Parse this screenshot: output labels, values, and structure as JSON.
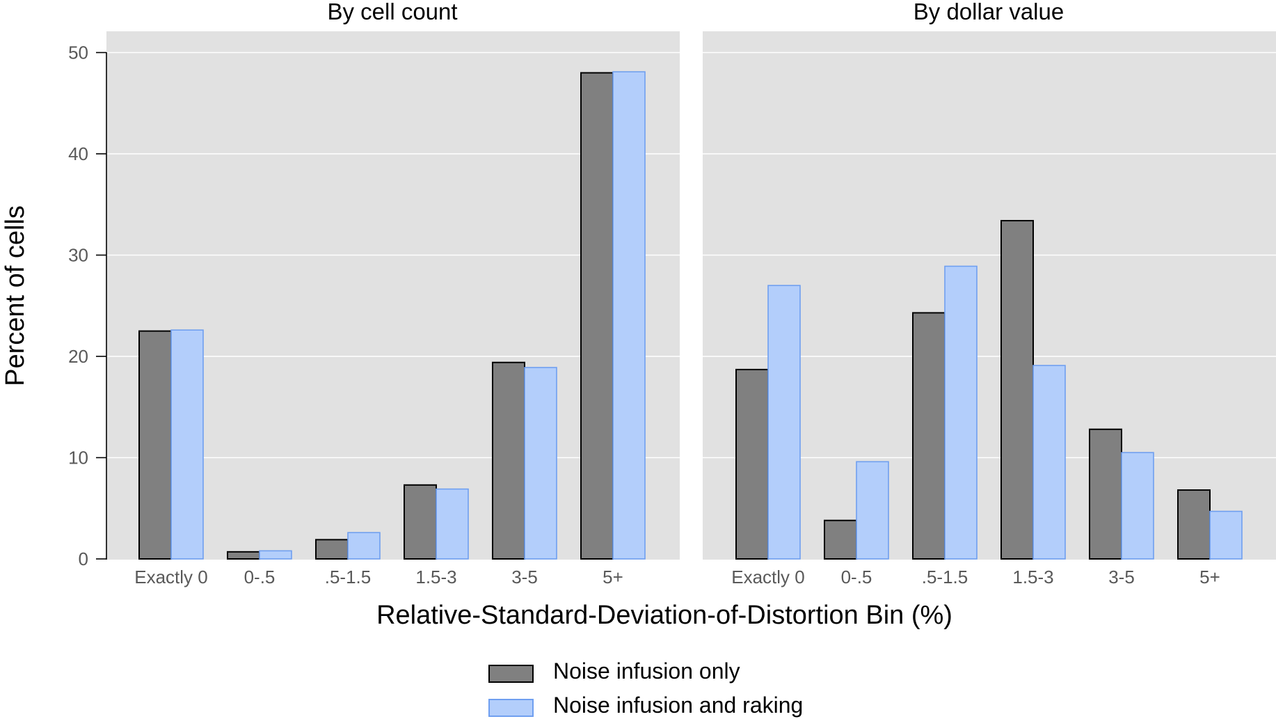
{
  "chart_data": {
    "type": "bar",
    "ylabel": "Percent of cells",
    "xlabel": "Relative-Standard-Deviation-of-Distortion Bin (%)",
    "ylim": [
      0,
      50
    ],
    "yticks": [
      "0",
      "10",
      "20",
      "30",
      "40",
      "50"
    ],
    "grid": true,
    "legend_position": "bottom",
    "colors": {
      "series_0_fill": "#808080",
      "series_0_stroke": "#000000",
      "series_1_fill": "#b3cefb",
      "series_1_stroke": "#6f9ff0",
      "panel_bg": "#e1e1e1"
    },
    "legend": [
      "Noise infusion only",
      "Noise infusion and raking"
    ],
    "panels": [
      {
        "title": "By cell count",
        "categories": [
          "Exactly 0",
          "0-.5",
          ".5-1.5",
          "1.5-3",
          "3-5",
          "5+"
        ],
        "series": [
          {
            "name": "Noise infusion only",
            "values": [
              22.5,
              0.7,
              1.9,
              7.3,
              19.4,
              48.0
            ]
          },
          {
            "name": "Noise infusion and raking",
            "values": [
              22.6,
              0.8,
              2.6,
              6.9,
              18.9,
              48.1
            ]
          }
        ]
      },
      {
        "title": "By dollar value",
        "categories": [
          "Exactly 0",
          "0-.5",
          ".5-1.5",
          "1.5-3",
          "3-5",
          "5+"
        ],
        "series": [
          {
            "name": "Noise infusion only",
            "values": [
              18.7,
              3.8,
              24.3,
              33.4,
              12.8,
              6.8
            ]
          },
          {
            "name": "Noise infusion and raking",
            "values": [
              27.0,
              9.6,
              28.9,
              19.1,
              10.5,
              4.7
            ]
          }
        ]
      }
    ]
  }
}
